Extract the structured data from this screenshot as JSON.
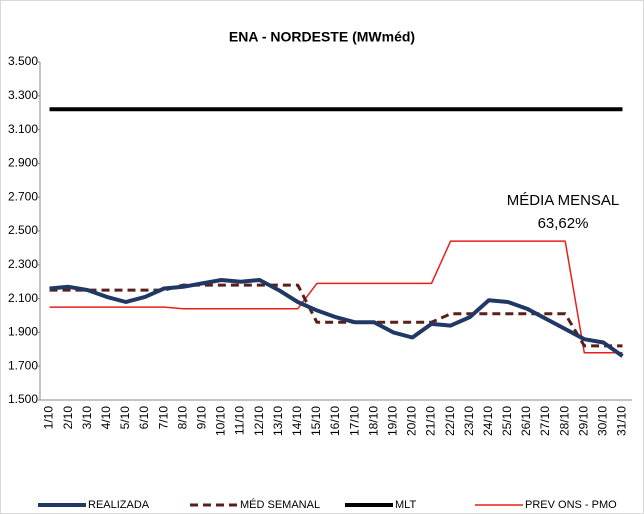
{
  "chart_data": {
    "type": "line",
    "title": "ENA - NORDESTE (MWméd)",
    "categories": [
      "1/10",
      "2/10",
      "3/10",
      "4/10",
      "5/10",
      "6/10",
      "7/10",
      "8/10",
      "9/10",
      "10/10",
      "11/10",
      "12/10",
      "13/10",
      "14/10",
      "15/10",
      "16/10",
      "17/10",
      "18/10",
      "19/10",
      "20/10",
      "21/10",
      "22/10",
      "23/10",
      "24/10",
      "25/10",
      "26/10",
      "27/10",
      "28/10",
      "29/10",
      "30/10",
      "31/10"
    ],
    "series": [
      {
        "name": "REALIZADA",
        "color": "#1f3864",
        "style": "solid",
        "width": 4,
        "values": [
          2160,
          2170,
          2150,
          2110,
          2080,
          2110,
          2160,
          2170,
          2190,
          2210,
          2200,
          2210,
          2150,
          2080,
          2030,
          1990,
          1960,
          1960,
          1900,
          1870,
          1950,
          1940,
          1990,
          2090,
          2080,
          2040,
          1980,
          1920,
          1860,
          1840,
          1760
        ]
      },
      {
        "name": "MÉD SEMANAL",
        "color": "#5b1f1a",
        "style": "dashed",
        "width": 3,
        "values": [
          2150,
          2150,
          2150,
          2150,
          2150,
          2150,
          2150,
          2180,
          2180,
          2180,
          2180,
          2180,
          2180,
          2180,
          1960,
          1960,
          1960,
          1960,
          1960,
          1960,
          1960,
          2010,
          2010,
          2010,
          2010,
          2010,
          2010,
          2010,
          1820,
          1820,
          1820
        ]
      },
      {
        "name": "MLT",
        "color": "#000000",
        "style": "solid",
        "width": 4,
        "values": [
          3220,
          3220,
          3220,
          3220,
          3220,
          3220,
          3220,
          3220,
          3220,
          3220,
          3220,
          3220,
          3220,
          3220,
          3220,
          3220,
          3220,
          3220,
          3220,
          3220,
          3220,
          3220,
          3220,
          3220,
          3220,
          3220,
          3220,
          3220,
          3220,
          3220,
          3220
        ]
      },
      {
        "name": "PREV ONS - PMO",
        "color": "#e8201a",
        "style": "solid",
        "width": 1.5,
        "values": [
          2050,
          2050,
          2050,
          2050,
          2050,
          2050,
          2050,
          2040,
          2040,
          2040,
          2040,
          2040,
          2040,
          2040,
          2190,
          2190,
          2190,
          2190,
          2190,
          2190,
          2190,
          2440,
          2440,
          2440,
          2440,
          2440,
          2440,
          2440,
          1780,
          1780,
          1780
        ]
      }
    ],
    "ylim": [
      1500,
      3500
    ],
    "yticks": [
      {
        "value": 1500,
        "label": "1.500"
      },
      {
        "value": 1700,
        "label": "1.700"
      },
      {
        "value": 1900,
        "label": "1.900"
      },
      {
        "value": 2100,
        "label": "2.100"
      },
      {
        "value": 2300,
        "label": "2.300"
      },
      {
        "value": 2500,
        "label": "2.500"
      },
      {
        "value": 2700,
        "label": "2.700"
      },
      {
        "value": 2900,
        "label": "2.900"
      },
      {
        "value": 3100,
        "label": "3.100"
      },
      {
        "value": 3300,
        "label": "3.300"
      },
      {
        "value": 3500,
        "label": "3.500"
      }
    ],
    "annotations": [
      "MÉDIA MENSAL",
      "63,62%"
    ],
    "legend": "bottom"
  }
}
